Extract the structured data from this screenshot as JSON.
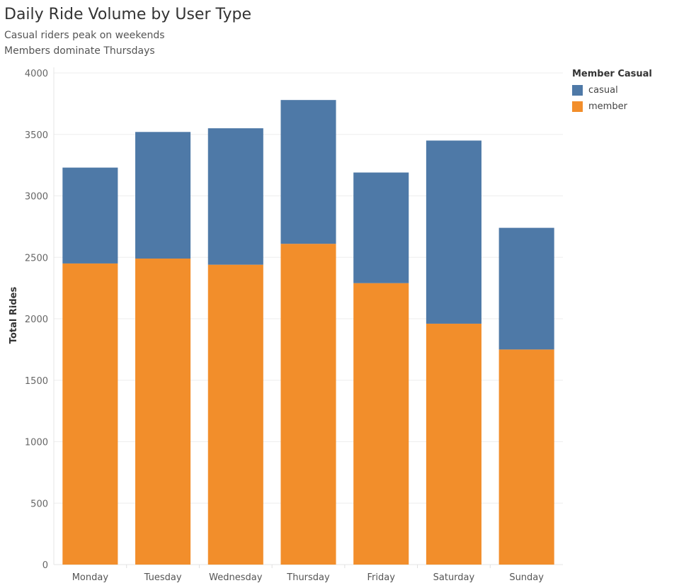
{
  "header": {
    "title": "Daily Ride Volume by User Type",
    "subtitle_lines": [
      "Casual riders peak on weekends",
      "Members dominate Thursdays"
    ]
  },
  "legend": {
    "title": "Member Casual",
    "items": [
      {
        "label": "casual",
        "color": "#4e79a7"
      },
      {
        "label": "member",
        "color": "#f28e2b"
      }
    ]
  },
  "chart_data": {
    "type": "bar",
    "stacked": true,
    "categories": [
      "Monday",
      "Tuesday",
      "Wednesday",
      "Thursday",
      "Friday",
      "Saturday",
      "Sunday"
    ],
    "series": [
      {
        "name": "member",
        "color": "#f28e2b",
        "values": [
          2450,
          2490,
          2440,
          2610,
          2290,
          1960,
          1750
        ]
      },
      {
        "name": "casual",
        "color": "#4e79a7",
        "values": [
          780,
          1030,
          1110,
          1170,
          900,
          1490,
          990
        ]
      }
    ],
    "ylabel": "Total Rides",
    "xlabel": "",
    "ylim": [
      0,
      4000
    ],
    "yticks": [
      0,
      500,
      1000,
      1500,
      2000,
      2500,
      3000,
      3500,
      4000
    ],
    "grid": true,
    "legend_position": "top-right"
  }
}
